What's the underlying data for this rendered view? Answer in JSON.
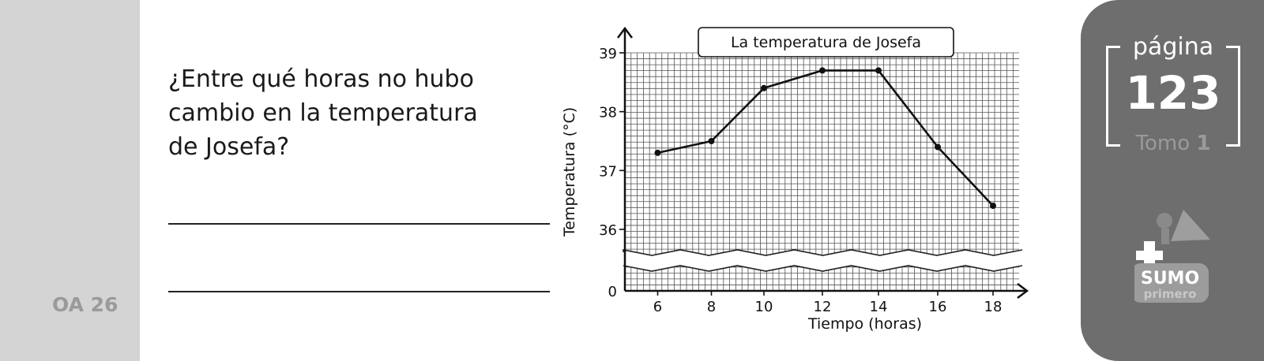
{
  "side": {
    "oa_label": "OA 26"
  },
  "question": {
    "text": "¿Entre qué horas no hubo cambio en la temperatura de Josefa?"
  },
  "page_badge": {
    "label": "página",
    "number": "123",
    "tomo_label": "Tomo",
    "tomo_number": "1"
  },
  "logo": {
    "line1": "SUMO",
    "line2": "primero"
  },
  "chart_data": {
    "type": "line",
    "title": "La temperatura de Josefa",
    "xlabel": "Tiempo (horas)",
    "ylabel": "Temperatura (°C)",
    "x_ticks": [
      "6",
      "8",
      "10",
      "12",
      "14",
      "16",
      "18"
    ],
    "y_ticks": [
      "0",
      "36",
      "37",
      "38",
      "39"
    ],
    "xlim": [
      5,
      18.5
    ],
    "ylim": [
      36,
      39
    ],
    "axis_break": true,
    "grid": true,
    "series": [
      {
        "x": [
          6,
          8,
          10,
          12,
          14,
          16,
          18
        ],
        "y": [
          37.3,
          37.5,
          38.4,
          38.7,
          38.7,
          37.4,
          36.4
        ]
      }
    ]
  }
}
